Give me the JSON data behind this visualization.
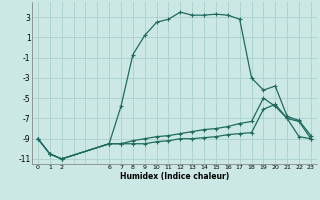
{
  "title": "",
  "xlabel": "Humidex (Indice chaleur)",
  "bg_color": "#cce8e4",
  "grid_color": "#aacfcc",
  "line_color": "#1e6b5e",
  "xlim": [
    -0.5,
    23.5
  ],
  "ylim": [
    -11.5,
    4.5
  ],
  "xticks": [
    0,
    1,
    2,
    6,
    7,
    8,
    9,
    10,
    11,
    12,
    13,
    14,
    15,
    16,
    17,
    18,
    19,
    20,
    21,
    22,
    23
  ],
  "yticks": [
    3,
    1,
    -1,
    -3,
    -5,
    -7,
    -9,
    -11
  ],
  "line1_x": [
    0,
    1,
    2,
    6,
    7,
    8,
    9,
    10,
    11,
    12,
    13,
    14,
    15,
    16,
    17,
    18,
    19,
    20,
    21,
    22,
    23
  ],
  "line1_y": [
    -9.0,
    -10.5,
    -11.0,
    -9.5,
    -5.8,
    -0.7,
    1.2,
    2.5,
    2.8,
    3.5,
    3.2,
    3.2,
    3.3,
    3.2,
    2.8,
    -3.0,
    -4.2,
    -3.8,
    -6.8,
    -7.2,
    -8.7
  ],
  "line2_x": [
    0,
    1,
    2,
    6,
    7,
    8,
    9,
    10,
    11,
    12,
    13,
    14,
    15,
    16,
    17,
    18,
    19,
    20,
    21,
    22,
    23
  ],
  "line2_y": [
    -9.0,
    -10.5,
    -11.0,
    -9.5,
    -9.5,
    -9.5,
    -9.5,
    -9.3,
    -9.2,
    -9.0,
    -9.0,
    -8.9,
    -8.8,
    -8.6,
    -8.5,
    -8.4,
    -6.1,
    -5.6,
    -7.0,
    -8.8,
    -9.0
  ],
  "line3_x": [
    0,
    1,
    2,
    6,
    7,
    8,
    9,
    10,
    11,
    12,
    13,
    14,
    15,
    16,
    17,
    18,
    19,
    20,
    21,
    22,
    23
  ],
  "line3_y": [
    -9.0,
    -10.5,
    -11.0,
    -9.5,
    -9.5,
    -9.2,
    -9.0,
    -8.8,
    -8.7,
    -8.5,
    -8.3,
    -8.1,
    -8.0,
    -7.8,
    -7.5,
    -7.3,
    -5.0,
    -5.8,
    -7.0,
    -7.3,
    -9.0
  ]
}
